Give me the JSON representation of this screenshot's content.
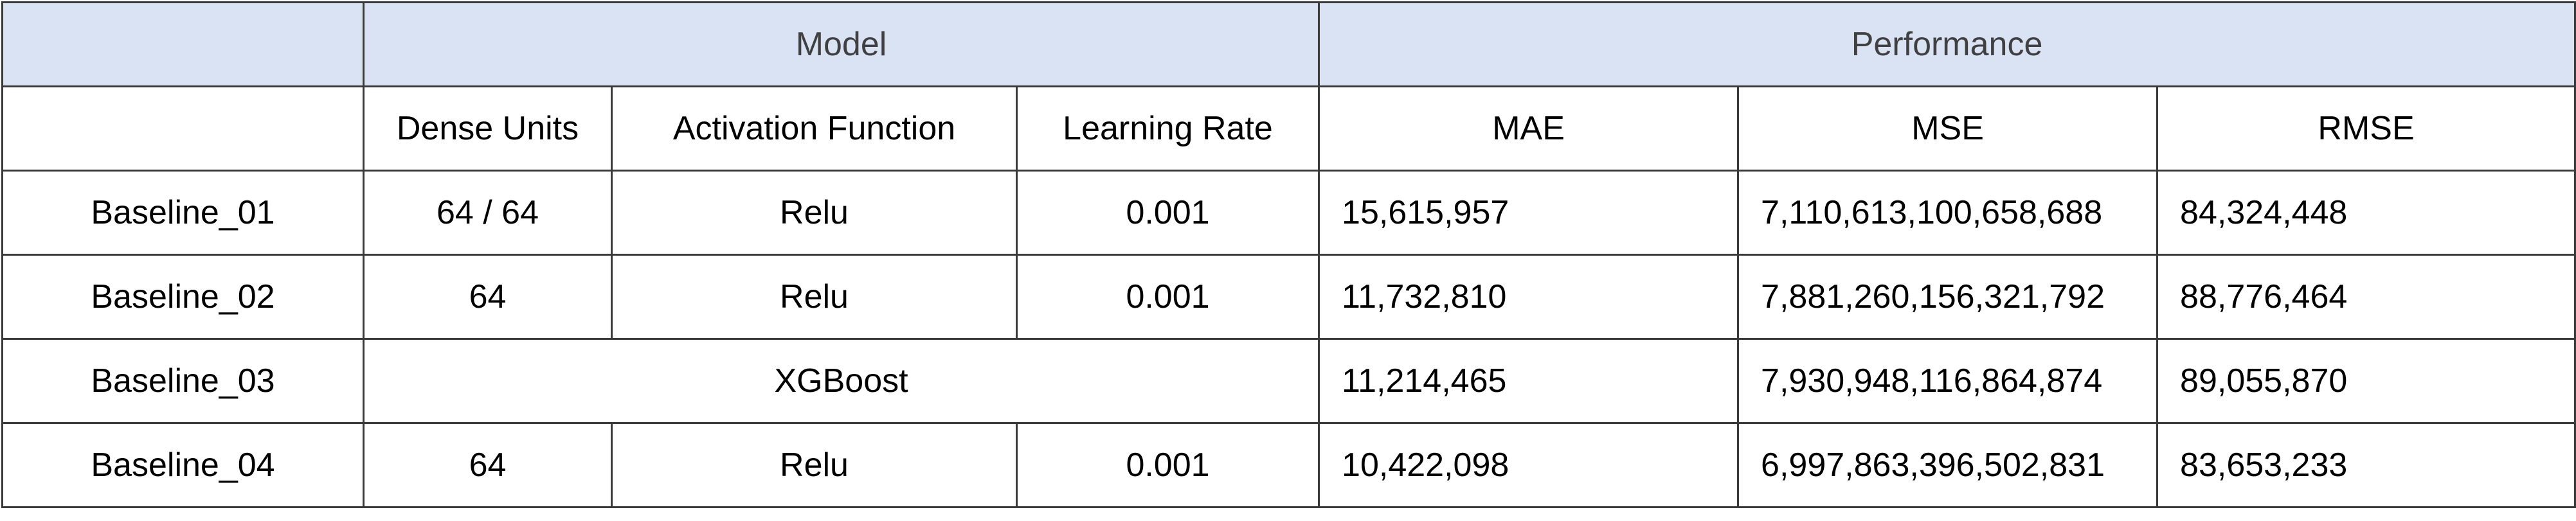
{
  "table": {
    "group_headers": {
      "corner": "",
      "model": "Model",
      "performance": "Performance"
    },
    "columns": {
      "name": "",
      "dense_units": "Dense Units",
      "activation_function": "Activation Function",
      "learning_rate": "Learning Rate",
      "mae": "MAE",
      "mse": "MSE",
      "rmse": "RMSE"
    },
    "rows": [
      {
        "name": "Baseline_01",
        "dense_units": "64 / 64",
        "activation_function": "Relu",
        "learning_rate": "0.001",
        "mae": "15,615,957",
        "mse": "7,110,613,100,658,688",
        "rmse": "84,324,448"
      },
      {
        "name": "Baseline_02",
        "dense_units": "64",
        "activation_function": "Relu",
        "learning_rate": "0.001",
        "mae": "11,732,810",
        "mse": "7,881,260,156,321,792",
        "rmse": "88,776,464"
      },
      {
        "name": "Baseline_03",
        "model": "XGBoost",
        "mae": "11,214,465",
        "mse": "7,930,948,116,864,874",
        "rmse": "89,055,870"
      },
      {
        "name": "Baseline_04",
        "dense_units": "64",
        "activation_function": "Relu",
        "learning_rate": "0.001",
        "mae": "10,422,098",
        "mse": "6,997,863,396,502,831",
        "rmse": "83,653,233"
      }
    ]
  }
}
